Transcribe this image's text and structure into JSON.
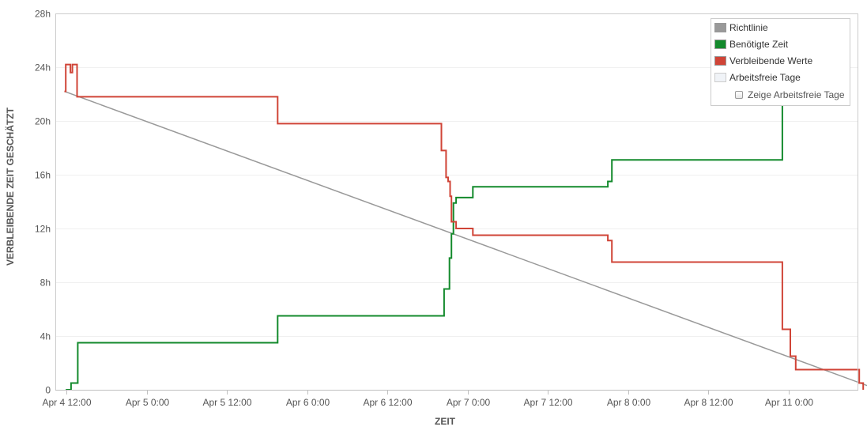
{
  "chart_data": {
    "type": "line",
    "xlabel": "ZEIT",
    "ylabel": "VERBLEIBENDE ZEIT GESCHÄTZT",
    "x_unit": "hours",
    "xlim": [
      0,
      162
    ],
    "ylim": [
      0,
      28
    ],
    "x_ticks": [
      {
        "x": 0,
        "label": "Apr 4 12:00"
      },
      {
        "x": 12,
        "label": "Apr 5 0:00"
      },
      {
        "x": 24,
        "label": "Apr 5 12:00"
      },
      {
        "x": 36,
        "label": "Apr 6 0:00"
      },
      {
        "x": 48,
        "label": "Apr 6 12:00"
      },
      {
        "x": 60,
        "label": "Apr 7 0:00"
      },
      {
        "x": 72,
        "label": "Apr 7 12:00"
      },
      {
        "x": 84,
        "label": "Apr 8 0:00"
      },
      {
        "x": 96,
        "label": "Apr 8 12:00"
      },
      {
        "x": 108,
        "label": "Apr 11 0:00"
      }
    ],
    "y_ticks": [
      {
        "y": 0,
        "label": "0"
      },
      {
        "y": 4,
        "label": "4h"
      },
      {
        "y": 8,
        "label": "8h"
      },
      {
        "y": 12,
        "label": "12h"
      },
      {
        "y": 16,
        "label": "16h"
      },
      {
        "y": 20,
        "label": "20h"
      },
      {
        "y": 24,
        "label": "24h"
      },
      {
        "y": 28,
        "label": "28h"
      }
    ],
    "grid": "horizontal",
    "legend_position": "top-right",
    "series": [
      {
        "name": "Richtlinie",
        "color": "#999999",
        "step": false,
        "points": [
          [
            -0.3,
            22.2
          ],
          [
            121.5,
            0
          ]
        ]
      },
      {
        "name": "Benötigte Zeit",
        "color": "#138a2c",
        "step": true,
        "points": [
          [
            -0.1,
            0
          ],
          [
            0.7,
            0
          ],
          [
            0.7,
            0.5
          ],
          [
            1.7,
            0.5
          ],
          [
            1.7,
            3.5
          ],
          [
            31.6,
            3.5
          ],
          [
            31.6,
            5.5
          ],
          [
            56.5,
            5.5
          ],
          [
            56.5,
            7.5
          ],
          [
            57.3,
            7.5
          ],
          [
            57.3,
            9.8
          ],
          [
            57.6,
            9.8
          ],
          [
            57.6,
            11.6
          ],
          [
            57.9,
            11.6
          ],
          [
            57.9,
            13.9
          ],
          [
            58.3,
            13.9
          ],
          [
            58.3,
            14.3
          ],
          [
            60.8,
            14.3
          ],
          [
            60.8,
            15.1
          ],
          [
            81,
            15.1
          ],
          [
            81,
            15.5
          ],
          [
            81.6,
            15.5
          ],
          [
            81.6,
            17.1
          ],
          [
            107.1,
            17.1
          ],
          [
            107.1,
            22.1
          ],
          [
            107.6,
            22.1
          ],
          [
            107.6,
            22.2
          ]
        ]
      },
      {
        "name": "Verbleibende Werte",
        "color": "#d04437",
        "step": true,
        "points": [
          [
            -0.3,
            22.2
          ],
          [
            -0.1,
            22.2
          ],
          [
            -0.1,
            24.2
          ],
          [
            0.6,
            24.2
          ],
          [
            0.6,
            23.6
          ],
          [
            0.9,
            23.6
          ],
          [
            0.9,
            24.2
          ],
          [
            1.6,
            24.2
          ],
          [
            1.6,
            21.8
          ],
          [
            31.6,
            21.8
          ],
          [
            31.6,
            19.8
          ],
          [
            56.1,
            19.8
          ],
          [
            56.1,
            17.8
          ],
          [
            56.8,
            17.8
          ],
          [
            56.8,
            15.8
          ],
          [
            57.1,
            15.8
          ],
          [
            57.1,
            15.5
          ],
          [
            57.4,
            15.5
          ],
          [
            57.4,
            14.4
          ],
          [
            57.6,
            14.4
          ],
          [
            57.6,
            12.5
          ],
          [
            58.3,
            12.5
          ],
          [
            58.3,
            12
          ],
          [
            60.8,
            12
          ],
          [
            60.8,
            11.5
          ],
          [
            81,
            11.5
          ],
          [
            81,
            11.1
          ],
          [
            81.6,
            11.1
          ],
          [
            81.6,
            9.5
          ],
          [
            107.1,
            9.5
          ],
          [
            107.1,
            4.5
          ],
          [
            108.3,
            4.5
          ],
          [
            108.3,
            2.5
          ],
          [
            109.1,
            2.5
          ],
          [
            109.1,
            1.5
          ],
          [
            118.6,
            1.5
          ],
          [
            118.6,
            0.5
          ],
          [
            119.2,
            0.5
          ],
          [
            119.2,
            0
          ]
        ]
      },
      {
        "name": "Arbeitsfreie Tage",
        "color": "#f0f3f7",
        "step": false,
        "points": []
      }
    ],
    "legend": {
      "items": [
        {
          "label": "Richtlinie",
          "color": "#999999"
        },
        {
          "label": "Benötigte Zeit",
          "color": "#138a2c"
        },
        {
          "label": "Verbleibende Werte",
          "color": "#d04437"
        },
        {
          "label": "Arbeitsfreie Tage",
          "color": "#f0f3f7"
        }
      ],
      "checkbox_label": "Zeige Arbeitsfreie Tage",
      "checkbox_checked": false
    }
  }
}
